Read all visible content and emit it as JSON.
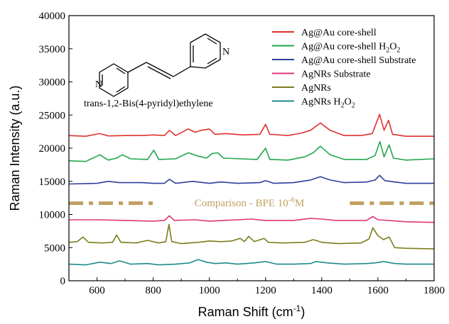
{
  "chart_data": {
    "type": "line",
    "xlabel": "Raman Shift (cm",
    "xlabel_sup": "-1",
    "xlabel_tail": ")",
    "ylabel": "Raman Intensity (a.u.)",
    "xlim": [
      500,
      1800
    ],
    "ylim": [
      0,
      40000
    ],
    "x_ticks": [
      600,
      800,
      1000,
      1200,
      1400,
      1600,
      1800
    ],
    "y_ticks": [
      0,
      5000,
      10000,
      15000,
      20000,
      25000,
      30000,
      35000,
      40000
    ],
    "legend_position": "top-right",
    "series": [
      {
        "name": "Ag@Au core-shell",
        "name_sub": "",
        "color": "#e0312f",
        "points": [
          [
            500,
            21900
          ],
          [
            560,
            21800
          ],
          [
            610,
            22200
          ],
          [
            640,
            21850
          ],
          [
            700,
            21900
          ],
          [
            760,
            21900
          ],
          [
            800,
            22000
          ],
          [
            840,
            21900
          ],
          [
            858,
            22700
          ],
          [
            880,
            21900
          ],
          [
            925,
            22900
          ],
          [
            950,
            22400
          ],
          [
            970,
            22700
          ],
          [
            1000,
            22900
          ],
          [
            1020,
            22100
          ],
          [
            1060,
            22200
          ],
          [
            1120,
            22000
          ],
          [
            1180,
            22100
          ],
          [
            1200,
            23600
          ],
          [
            1215,
            22100
          ],
          [
            1280,
            21900
          ],
          [
            1330,
            22300
          ],
          [
            1360,
            22700
          ],
          [
            1395,
            23800
          ],
          [
            1430,
            22700
          ],
          [
            1480,
            21900
          ],
          [
            1540,
            21900
          ],
          [
            1580,
            22200
          ],
          [
            1606,
            25100
          ],
          [
            1622,
            22700
          ],
          [
            1638,
            24200
          ],
          [
            1652,
            22100
          ],
          [
            1700,
            21800
          ],
          [
            1800,
            21800
          ]
        ]
      },
      {
        "name": "Ag@Au core-shell H",
        "name_sub": "2",
        "name_tail": "O",
        "name_sub2": "2",
        "color": "#22a64b",
        "points": [
          [
            500,
            18100
          ],
          [
            560,
            18000
          ],
          [
            610,
            19000
          ],
          [
            640,
            18200
          ],
          [
            670,
            18500
          ],
          [
            690,
            19000
          ],
          [
            720,
            18400
          ],
          [
            780,
            18300
          ],
          [
            802,
            19700
          ],
          [
            820,
            18300
          ],
          [
            880,
            18400
          ],
          [
            925,
            19300
          ],
          [
            960,
            18800
          ],
          [
            990,
            18500
          ],
          [
            1010,
            19200
          ],
          [
            1030,
            19300
          ],
          [
            1050,
            18500
          ],
          [
            1110,
            18400
          ],
          [
            1170,
            18300
          ],
          [
            1200,
            20000
          ],
          [
            1215,
            18300
          ],
          [
            1280,
            18200
          ],
          [
            1340,
            18700
          ],
          [
            1370,
            19300
          ],
          [
            1395,
            20300
          ],
          [
            1430,
            19000
          ],
          [
            1480,
            18300
          ],
          [
            1560,
            18300
          ],
          [
            1590,
            18900
          ],
          [
            1607,
            21000
          ],
          [
            1622,
            18700
          ],
          [
            1640,
            20500
          ],
          [
            1655,
            18500
          ],
          [
            1700,
            18200
          ],
          [
            1800,
            18400
          ]
        ]
      },
      {
        "name": "Ag@Au core-shell Substrate",
        "name_sub": "",
        "color": "#2c3f99",
        "points": [
          [
            500,
            14600
          ],
          [
            600,
            14700
          ],
          [
            640,
            15000
          ],
          [
            680,
            14800
          ],
          [
            760,
            14800
          ],
          [
            800,
            14700
          ],
          [
            840,
            14700
          ],
          [
            858,
            15300
          ],
          [
            880,
            14700
          ],
          [
            940,
            15000
          ],
          [
            1000,
            14700
          ],
          [
            1040,
            14900
          ],
          [
            1100,
            14700
          ],
          [
            1180,
            14800
          ],
          [
            1200,
            15100
          ],
          [
            1230,
            14700
          ],
          [
            1300,
            14800
          ],
          [
            1360,
            15200
          ],
          [
            1395,
            15700
          ],
          [
            1430,
            15200
          ],
          [
            1480,
            14800
          ],
          [
            1560,
            14900
          ],
          [
            1590,
            15200
          ],
          [
            1606,
            15900
          ],
          [
            1625,
            15100
          ],
          [
            1660,
            14900
          ],
          [
            1700,
            14700
          ],
          [
            1800,
            14700
          ]
        ]
      },
      {
        "name": "AgNRs Substrate",
        "name_sub": "",
        "color": "#e0357a",
        "points": [
          [
            500,
            9200
          ],
          [
            600,
            9200
          ],
          [
            700,
            9100
          ],
          [
            800,
            9000
          ],
          [
            840,
            9100
          ],
          [
            858,
            9800
          ],
          [
            875,
            9100
          ],
          [
            950,
            9200
          ],
          [
            1000,
            9000
          ],
          [
            1050,
            9100
          ],
          [
            1100,
            9200
          ],
          [
            1150,
            9300
          ],
          [
            1200,
            9100
          ],
          [
            1300,
            9100
          ],
          [
            1360,
            9400
          ],
          [
            1400,
            9300
          ],
          [
            1450,
            9100
          ],
          [
            1500,
            9100
          ],
          [
            1560,
            9100
          ],
          [
            1582,
            9700
          ],
          [
            1600,
            9200
          ],
          [
            1640,
            9100
          ],
          [
            1700,
            8900
          ],
          [
            1800,
            8800
          ]
        ]
      },
      {
        "name": "AgNRs",
        "name_sub": "",
        "color": "#7c7c1f",
        "points": [
          [
            500,
            5800
          ],
          [
            530,
            5900
          ],
          [
            550,
            6600
          ],
          [
            570,
            5800
          ],
          [
            620,
            5700
          ],
          [
            655,
            5800
          ],
          [
            670,
            6900
          ],
          [
            685,
            5800
          ],
          [
            740,
            5700
          ],
          [
            780,
            6100
          ],
          [
            820,
            5700
          ],
          [
            845,
            5900
          ],
          [
            856,
            8500
          ],
          [
            866,
            5900
          ],
          [
            900,
            5600
          ],
          [
            960,
            5800
          ],
          [
            1000,
            6000
          ],
          [
            1040,
            5900
          ],
          [
            1080,
            6000
          ],
          [
            1110,
            6400
          ],
          [
            1125,
            5900
          ],
          [
            1140,
            6700
          ],
          [
            1160,
            5900
          ],
          [
            1195,
            6400
          ],
          [
            1210,
            5800
          ],
          [
            1260,
            5700
          ],
          [
            1340,
            5800
          ],
          [
            1370,
            6200
          ],
          [
            1400,
            5800
          ],
          [
            1460,
            5600
          ],
          [
            1540,
            5700
          ],
          [
            1568,
            6300
          ],
          [
            1582,
            8000
          ],
          [
            1600,
            6800
          ],
          [
            1620,
            6200
          ],
          [
            1640,
            6600
          ],
          [
            1660,
            5000
          ],
          [
            1700,
            4900
          ],
          [
            1800,
            4800
          ]
        ]
      },
      {
        "name": "AgNRs H",
        "name_sub": "2",
        "name_tail": "O",
        "name_sub2": "2",
        "color": "#1f8a8a",
        "points": [
          [
            500,
            2500
          ],
          [
            560,
            2400
          ],
          [
            610,
            2800
          ],
          [
            650,
            2600
          ],
          [
            680,
            3000
          ],
          [
            720,
            2500
          ],
          [
            780,
            2600
          ],
          [
            820,
            2400
          ],
          [
            880,
            2500
          ],
          [
            930,
            2700
          ],
          [
            960,
            3200
          ],
          [
            990,
            2800
          ],
          [
            1020,
            2600
          ],
          [
            1060,
            2700
          ],
          [
            1100,
            2500
          ],
          [
            1160,
            2700
          ],
          [
            1200,
            2900
          ],
          [
            1240,
            2500
          ],
          [
            1300,
            2500
          ],
          [
            1360,
            2600
          ],
          [
            1380,
            2900
          ],
          [
            1420,
            2700
          ],
          [
            1480,
            2500
          ],
          [
            1560,
            2600
          ],
          [
            1590,
            2700
          ],
          [
            1620,
            2900
          ],
          [
            1660,
            2600
          ],
          [
            1700,
            2500
          ],
          [
            1800,
            2500
          ]
        ]
      }
    ],
    "annotation": {
      "text": "Comparison - BPE 10",
      "sup": "-6",
      "tail": "M",
      "color": "#c0a060",
      "y": 11700,
      "x_segments": [
        [
          500,
          800
        ],
        [
          1500,
          1800
        ]
      ]
    },
    "inset_label": "trans-1,2-Bis(4-pyridyl)ethylene",
    "inset_atom_label": "N"
  }
}
